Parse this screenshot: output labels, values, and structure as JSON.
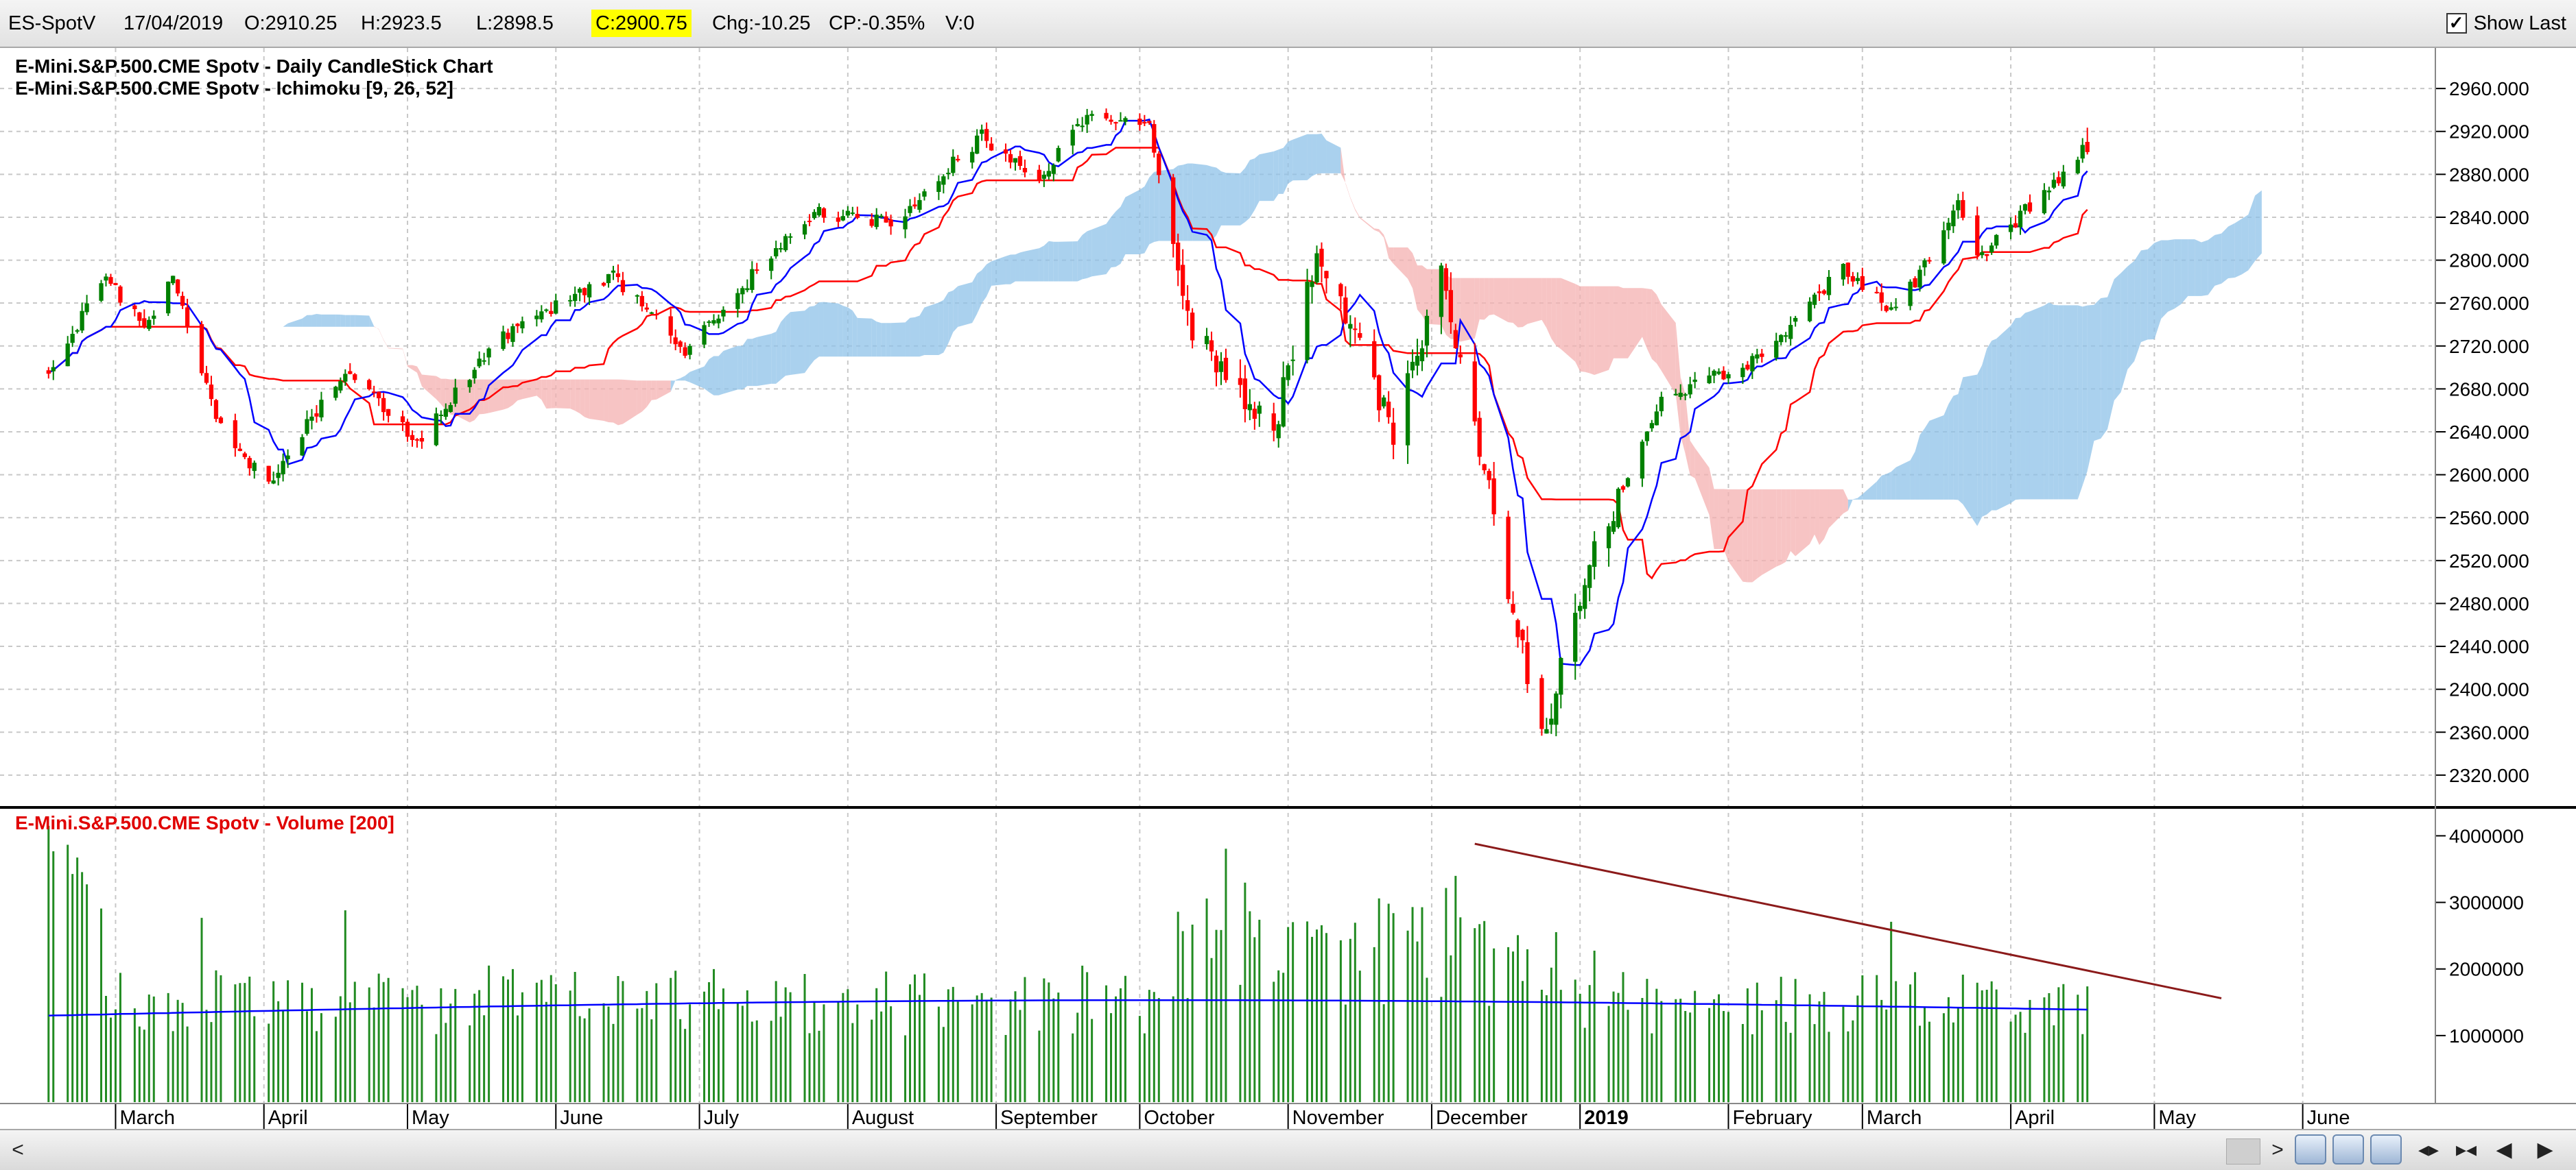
{
  "topbar": {
    "symbol": "ES-SpotV",
    "date": "17/04/2019",
    "open": "O:2910.25",
    "high": "H:2923.5",
    "low": "L:2898.5",
    "close": "C:2900.75",
    "change": "Chg:-10.25",
    "change_pct": "CP:-0.35%",
    "volume": "V:0",
    "show_last_label": "Show Last",
    "show_last_checked": true
  },
  "colors": {
    "up_candle": "#008000",
    "down_candle": "#ff0000",
    "tenkan": "#0000ff",
    "kijun": "#ff0000",
    "cloud_bull": "#8ec2e8",
    "cloud_bear": "#f4b0b0",
    "volume_bar": "#228b22",
    "volume_ma": "#0000ff",
    "trendline": "#8b1a1a",
    "close_highlight": "#ffff00"
  },
  "chart_data": [
    {
      "type": "candlestick",
      "title": "E-Mini.S&P.500.CME Spotv - Daily CandleStick Chart",
      "indicator_title": "E-Mini.S&P.500.CME Spotv - Ichimoku [9, 26, 52]",
      "y_ticks": [
        "2960.000",
        "2920.000",
        "2880.000",
        "2840.000",
        "2800.000",
        "2760.000",
        "2720.000",
        "2680.000",
        "2640.000",
        "2600.000",
        "2560.000",
        "2520.000",
        "2480.000",
        "2440.000",
        "2400.000",
        "2360.000",
        "2320.000"
      ],
      "ylim": [
        2295,
        2985
      ],
      "x_labels": [
        "March",
        "April",
        "May",
        "June",
        "July",
        "August",
        "September",
        "October",
        "November",
        "December",
        "2019",
        "February",
        "March",
        "April",
        "May",
        "June"
      ],
      "price_anchors": [
        [
          "2018-02-15",
          2700
        ],
        [
          "2018-02-27",
          2780
        ],
        [
          "2018-03-08",
          2740
        ],
        [
          "2018-03-13",
          2785
        ],
        [
          "2018-03-22",
          2650
        ],
        [
          "2018-04-02",
          2590
        ],
        [
          "2018-04-18",
          2700
        ],
        [
          "2018-05-03",
          2630
        ],
        [
          "2018-05-21",
          2730
        ],
        [
          "2018-06-13",
          2785
        ],
        [
          "2018-06-28",
          2715
        ],
        [
          "2018-07-17",
          2810
        ],
        [
          "2018-07-26",
          2845
        ],
        [
          "2018-08-10",
          2835
        ],
        [
          "2018-08-29",
          2915
        ],
        [
          "2018-09-10",
          2880
        ],
        [
          "2018-09-21",
          2935
        ],
        [
          "2018-10-03",
          2925
        ],
        [
          "2018-10-11",
          2740
        ],
        [
          "2018-10-29",
          2640
        ],
        [
          "2018-11-07",
          2810
        ],
        [
          "2018-11-23",
          2640
        ],
        [
          "2018-12-03",
          2790
        ],
        [
          "2018-12-24",
          2350
        ],
        [
          "2019-01-04",
          2530
        ],
        [
          "2019-01-18",
          2670
        ],
        [
          "2019-02-08",
          2710
        ],
        [
          "2019-02-25",
          2795
        ],
        [
          "2019-03-08",
          2750
        ],
        [
          "2019-03-21",
          2850
        ],
        [
          "2019-03-25",
          2800
        ],
        [
          "2019-04-17",
          2905
        ]
      ],
      "last_bar": {
        "date": "2019-04-17",
        "open": 2910.25,
        "high": 2923.5,
        "low": 2898.5,
        "close": 2900.75
      },
      "cloud_note": "Ichimoku cloud plotted 26 periods ahead; bullish cloud blue, bearish cloud pink"
    },
    {
      "type": "bar",
      "title": "E-Mini.S&P.500.CME Spotv - Volume [200]",
      "y_ticks": [
        "4000000",
        "3000000",
        "2000000",
        "1000000"
      ],
      "ylim": [
        0,
        4200000
      ],
      "volume_ma_level": 1500000,
      "trendline": {
        "start": [
          "2018-12-10",
          3880000
        ],
        "end": [
          "2019-05-15",
          1560000
        ]
      }
    }
  ],
  "bottombar": {
    "scroll_right": ">",
    "prev": "◀",
    "next": "▶"
  }
}
